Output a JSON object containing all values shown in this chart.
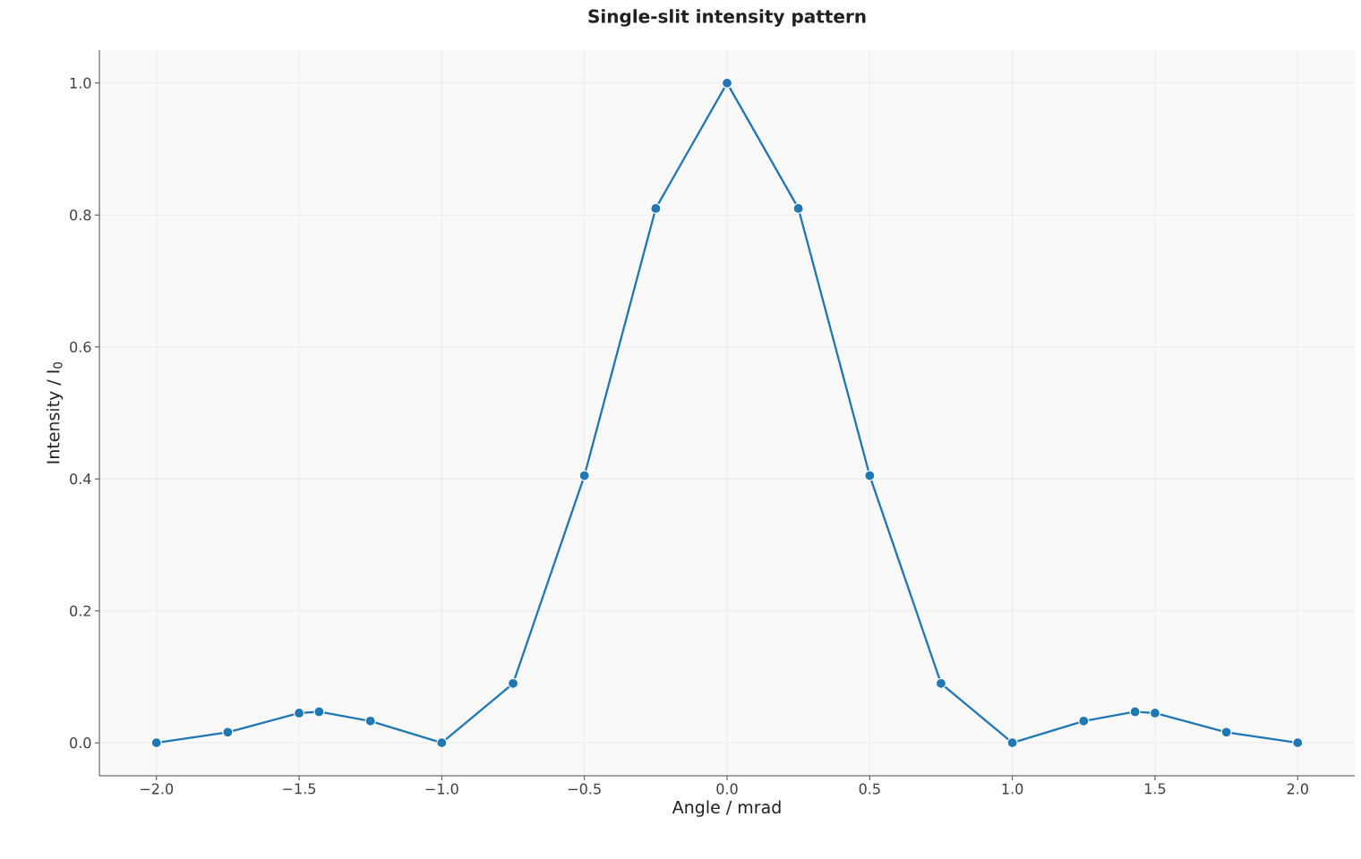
{
  "chart_data": {
    "type": "line",
    "title": "Single-slit intensity pattern",
    "xlabel": "Angle / mrad",
    "ylabel": "Intensity / I$_{0}$",
    "x": [
      -2.0,
      -1.75,
      -1.5,
      -1.43,
      -1.25,
      -1.0,
      -0.75,
      -0.5,
      -0.25,
      0.0,
      0.25,
      0.5,
      0.75,
      1.0,
      1.25,
      1.43,
      1.5,
      1.75,
      2.0
    ],
    "values": [
      0.0,
      0.016,
      0.045,
      0.047,
      0.033,
      0.0,
      0.09,
      0.405,
      0.81,
      1.0,
      0.81,
      0.405,
      0.09,
      0.0,
      0.033,
      0.047,
      0.045,
      0.016,
      0.0
    ],
    "color": "#1f77b4",
    "marker": "circle",
    "line_style": "solid",
    "grid": true,
    "xlim": [
      -2.2,
      2.2
    ],
    "ylim": [
      -0.05,
      1.05
    ],
    "xticks": [
      {
        "value": -2.0,
        "label": "−2.0"
      },
      {
        "value": -1.5,
        "label": "−1.5"
      },
      {
        "value": -1.0,
        "label": "−1.0"
      },
      {
        "value": -0.5,
        "label": "−0.5"
      },
      {
        "value": 0.0,
        "label": "0.0"
      },
      {
        "value": 0.5,
        "label": "0.5"
      },
      {
        "value": 1.0,
        "label": "1.0"
      },
      {
        "value": 1.5,
        "label": "1.5"
      },
      {
        "value": 2.0,
        "label": "2.0"
      }
    ],
    "yticks": [
      {
        "value": 0.0,
        "label": "0.0"
      },
      {
        "value": 0.2,
        "label": "0.2"
      },
      {
        "value": 0.4,
        "label": "0.4"
      },
      {
        "value": 0.6,
        "label": "0.6"
      },
      {
        "value": 0.8,
        "label": "0.8"
      },
      {
        "value": 1.0,
        "label": "1.0"
      }
    ]
  }
}
